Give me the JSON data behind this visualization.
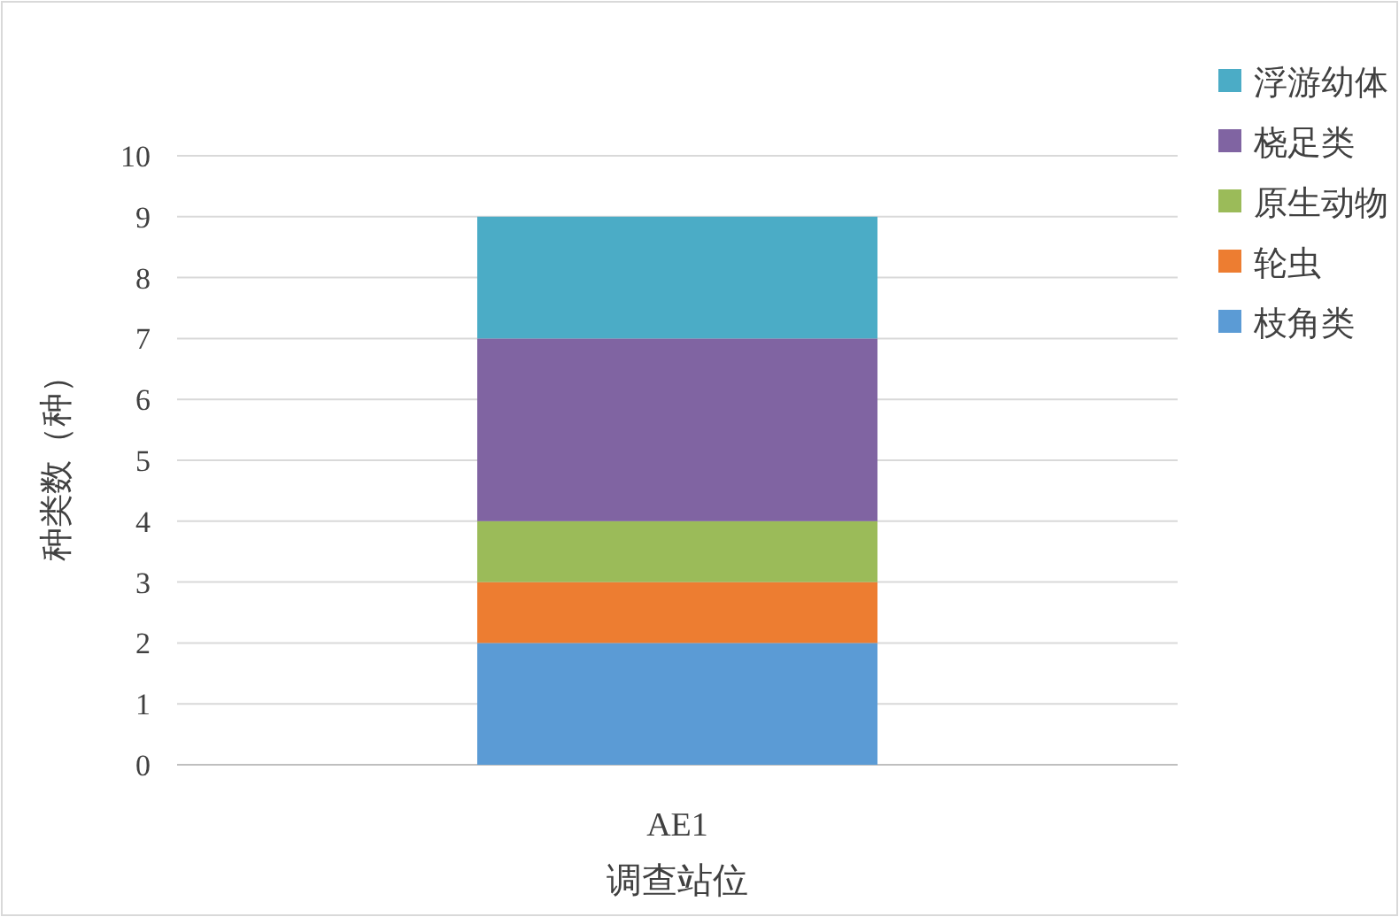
{
  "chart_data": {
    "type": "bar",
    "stacked": true,
    "categories": [
      "AE1"
    ],
    "series": [
      {
        "name": "枝角类",
        "color": "#5b9bd5",
        "values": [
          2
        ]
      },
      {
        "name": "轮虫",
        "color": "#ed7d31",
        "values": [
          1
        ]
      },
      {
        "name": "原生动物",
        "color": "#9bbb59",
        "values": [
          1
        ]
      },
      {
        "name": "桡足类",
        "color": "#8064a2",
        "values": [
          3
        ]
      },
      {
        "name": "浮游幼体",
        "color": "#4bacc6",
        "values": [
          2
        ]
      }
    ],
    "ylim": [
      0,
      10
    ],
    "yticks": [
      0,
      1,
      2,
      3,
      4,
      5,
      6,
      7,
      8,
      9,
      10
    ],
    "grid": "y",
    "legend": "top right",
    "xlabel": "调查站位",
    "ylabel": "种类数（种）"
  }
}
